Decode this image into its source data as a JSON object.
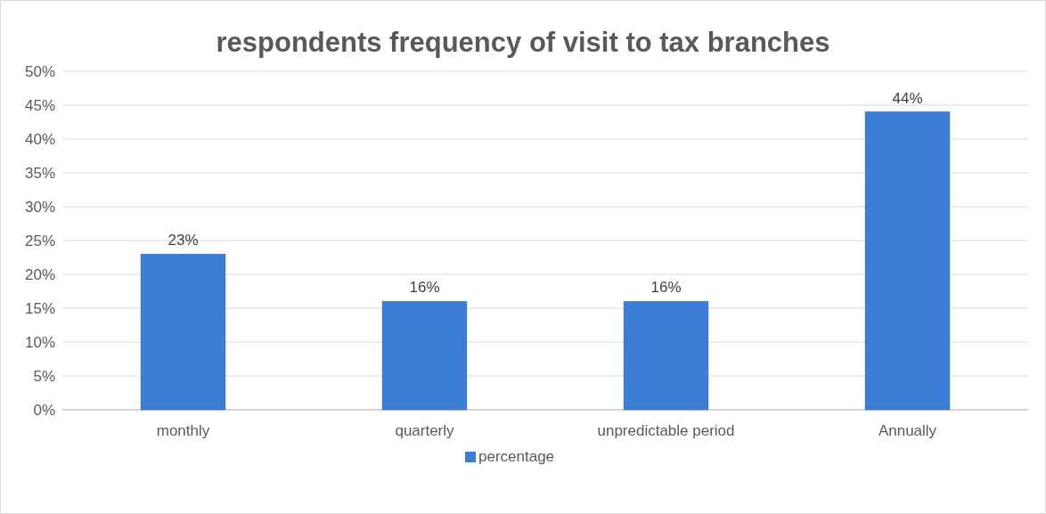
{
  "chart_data": {
    "type": "bar",
    "title": "respondents frequency of visit to tax branches",
    "categories": [
      "monthly",
      "quarterly",
      "unpredictable period",
      "Annually"
    ],
    "series": [
      {
        "name": "percentage",
        "color": "#3c7dd6",
        "values": [
          23,
          16,
          16,
          44
        ]
      }
    ],
    "ylim": [
      0,
      50
    ],
    "yticks": [
      {
        "value": 0,
        "label": "0%"
      },
      {
        "value": 5,
        "label": "5%"
      },
      {
        "value": 10,
        "label": "10%"
      },
      {
        "value": 15,
        "label": "15%"
      },
      {
        "value": 20,
        "label": "20%"
      },
      {
        "value": 25,
        "label": "25%"
      },
      {
        "value": 30,
        "label": "30%"
      },
      {
        "value": 35,
        "label": "35%"
      },
      {
        "value": 40,
        "label": "40%"
      },
      {
        "value": 45,
        "label": "45%"
      },
      {
        "value": 50,
        "label": "50%"
      }
    ],
    "value_labels": [
      [
        "23%",
        "16%",
        "16%",
        "44%"
      ]
    ],
    "grid": "y",
    "legend": "bottom"
  }
}
